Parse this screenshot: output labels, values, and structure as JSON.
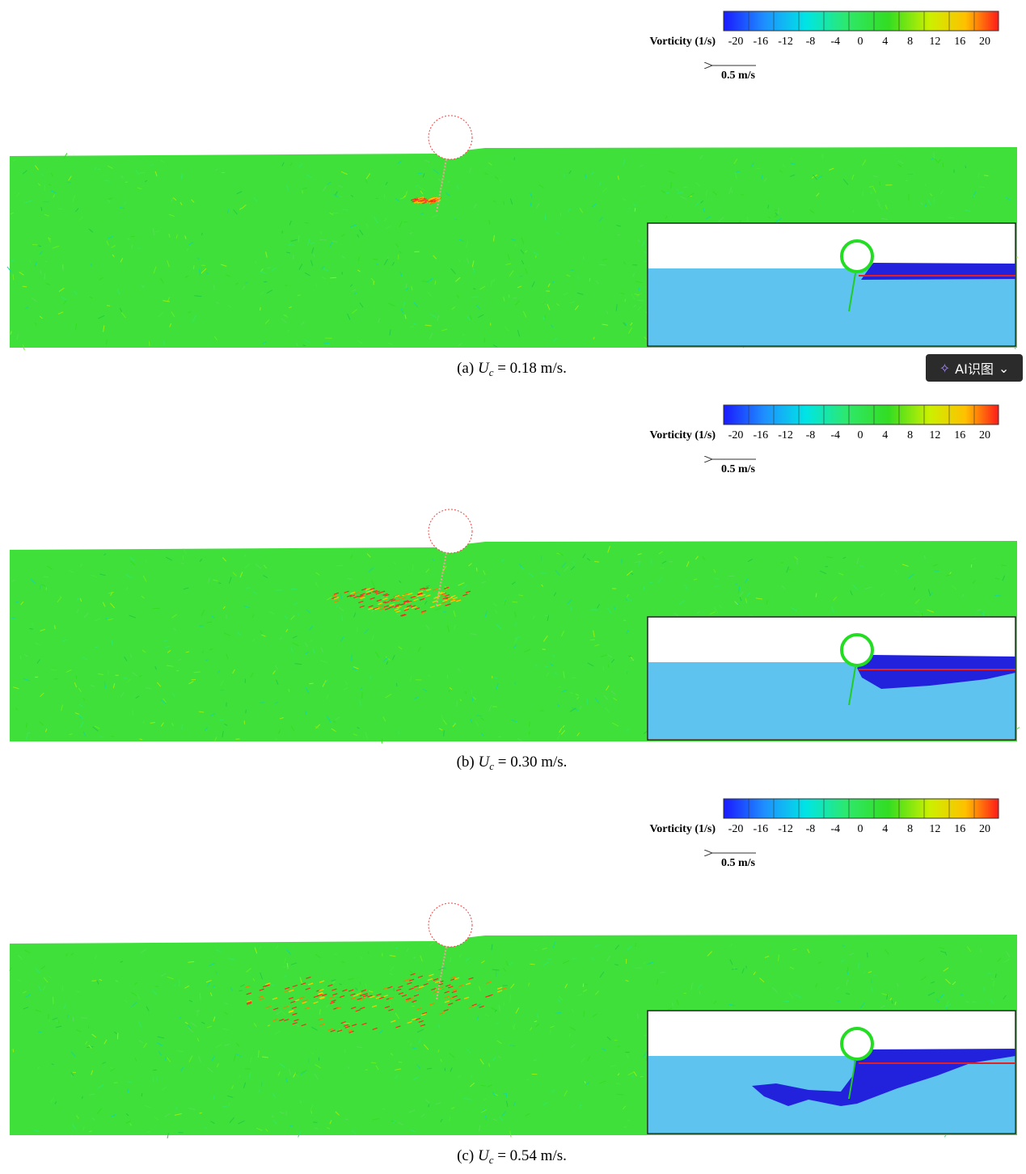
{
  "panels": [
    {
      "colorbar": {
        "label": "Vorticity (1/s)",
        "ticks": [
          -20,
          -16,
          -12,
          -8,
          -4,
          0,
          4,
          8,
          12,
          16,
          20
        ]
      },
      "scale_arrow": "0.5 m/s",
      "caption": {
        "prefix": "(a)",
        "symbol": "U",
        "subscript": "c",
        "equation": "= 0.18 m/s."
      }
    },
    {
      "colorbar": {
        "label": "Vorticity (1/s)",
        "ticks": [
          -20,
          -16,
          -12,
          -8,
          -4,
          0,
          4,
          8,
          12,
          16,
          20
        ]
      },
      "scale_arrow": "0.5 m/s",
      "caption": {
        "prefix": "(b)",
        "symbol": "U",
        "subscript": "c",
        "equation": "= 0.30 m/s."
      }
    },
    {
      "colorbar": {
        "label": "Vorticity (1/s)",
        "ticks": [
          -20,
          -16,
          -12,
          -8,
          -4,
          0,
          4,
          8,
          12,
          16,
          20
        ]
      },
      "scale_arrow": "0.5 m/s",
      "caption": {
        "prefix": "(c)",
        "symbol": "U",
        "subscript": "c",
        "equation": "= 0.54 m/s."
      }
    }
  ],
  "overlay_button": "AI识图"
}
